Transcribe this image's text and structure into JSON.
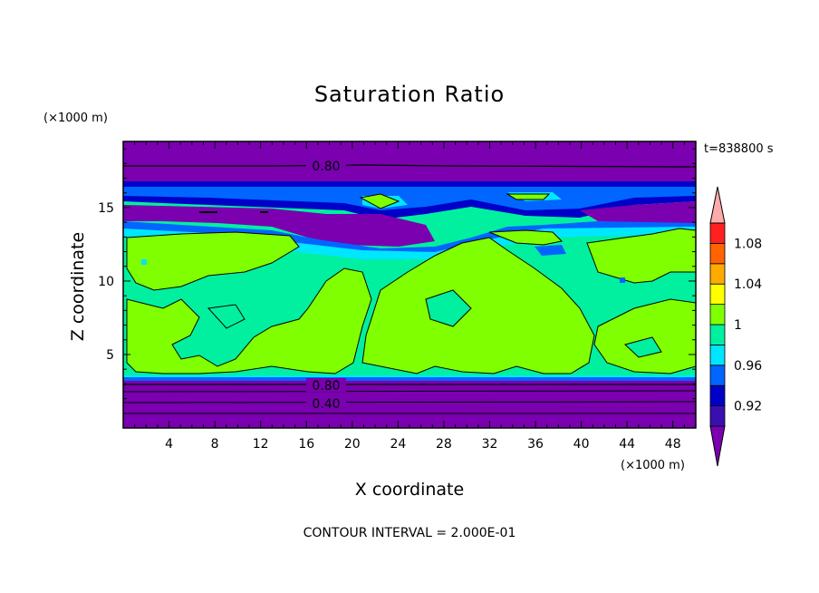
{
  "chart_data": {
    "type": "heatmap",
    "title": "Saturation Ratio",
    "xlabel": "X coordinate",
    "ylabel": "Z coordinate",
    "x_unit": "(×1000 m)",
    "z_unit": "(×1000 m)",
    "time_label": "t=838800 s",
    "footer": "CONTOUR INTERVAL = 2.000E-01",
    "xlim": [
      0,
      50
    ],
    "ylim": [
      0,
      19.5
    ],
    "x_ticks": [
      "4",
      "8",
      "12",
      "16",
      "20",
      "24",
      "28",
      "32",
      "36",
      "40",
      "44",
      "48"
    ],
    "y_ticks": [
      "5",
      "10",
      "15"
    ],
    "contour_labels": [
      "0.80",
      "0.80",
      "0.40"
    ],
    "colorbar": {
      "labels": [
        "0.92",
        "0.96",
        "1",
        "1.04",
        "1.08"
      ],
      "levels": [
        0.9,
        0.92,
        0.94,
        0.96,
        0.98,
        1.0,
        1.02,
        1.04,
        1.06,
        1.08,
        1.1
      ],
      "colors": [
        "#7a00b0",
        "#3a0fb0",
        "#0000c8",
        "#0066ff",
        "#00e6ff",
        "#00f0a0",
        "#80ff00",
        "#ffff00",
        "#ffaa00",
        "#ff6400",
        "#ff2020",
        "#ffaaaa"
      ]
    }
  }
}
